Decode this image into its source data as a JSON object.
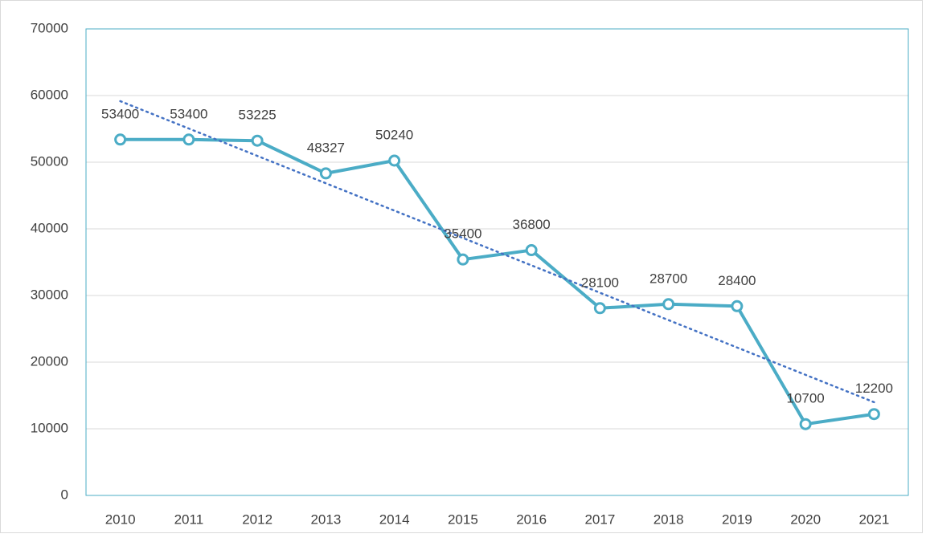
{
  "chart_data": {
    "type": "line",
    "categories": [
      "2010",
      "2011",
      "2012",
      "2013",
      "2014",
      "2015",
      "2016",
      "2017",
      "2018",
      "2019",
      "2020",
      "2021"
    ],
    "series": [
      {
        "color": "#4bacc6",
        "values": [
          53400,
          53400,
          53225,
          48327,
          50240,
          35400,
          36800,
          28100,
          28700,
          28400,
          10700,
          12200
        ]
      }
    ],
    "ylim": [
      0,
      70000
    ],
    "yticks": [
      0,
      10000,
      20000,
      30000,
      40000,
      50000,
      60000,
      70000
    ],
    "grid": true,
    "data_labels": true,
    "trendline": "linear",
    "trendline_color": "#4472c4"
  }
}
